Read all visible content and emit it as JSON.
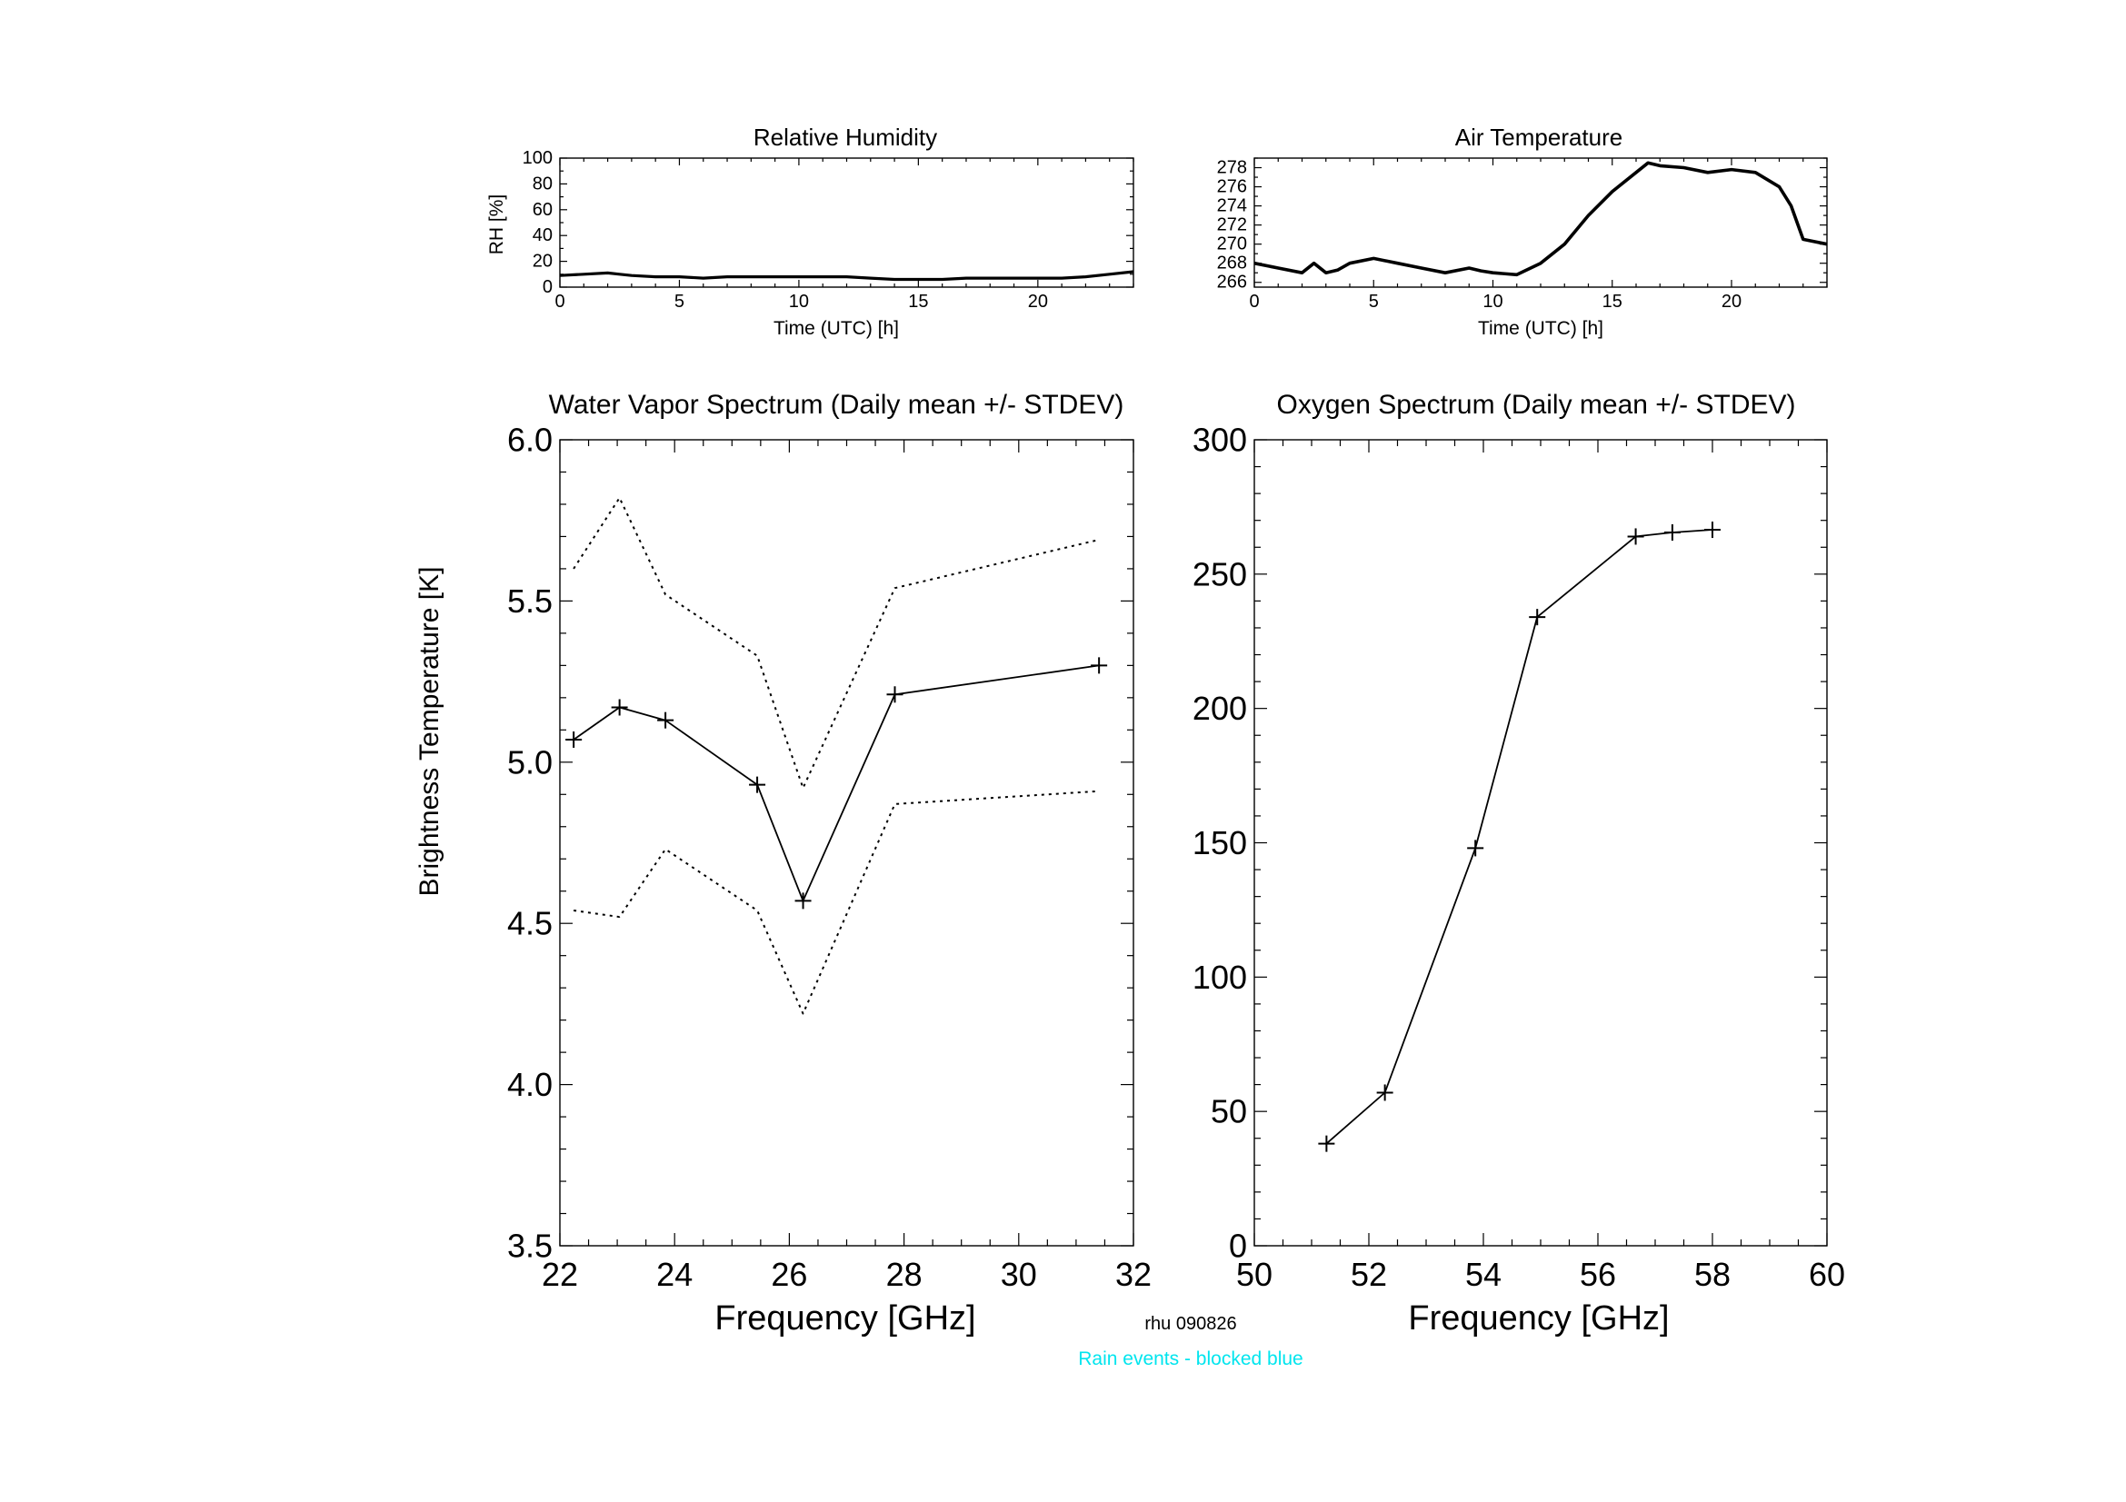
{
  "footer": {
    "station_label": "rhu 090826",
    "rain_note": "Rain events - blocked blue",
    "rain_color": "#00e5ee"
  },
  "chart_data": [
    {
      "id": "rh",
      "type": "line",
      "title": "Relative Humidity",
      "xlabel": "Time (UTC) [h]",
      "ylabel": "RH [%]",
      "xlim": [
        0,
        24
      ],
      "ylim": [
        0,
        100
      ],
      "xticks": [
        0,
        5,
        10,
        15,
        20
      ],
      "xtick_labels": [
        "0",
        "5",
        "10",
        "15",
        "20"
      ],
      "yticks": [
        0,
        20,
        40,
        60,
        80,
        100
      ],
      "ytick_labels": [
        "0",
        "20",
        "40",
        "60",
        "80",
        "100"
      ],
      "series": [
        {
          "style": "solid",
          "x": [
            0,
            1,
            2,
            2.5,
            3,
            4,
            5,
            6,
            7,
            8,
            9,
            10,
            11,
            12,
            13,
            14,
            15,
            16,
            17,
            18,
            19,
            20,
            21,
            22,
            23,
            24
          ],
          "y": [
            9,
            10,
            11,
            10,
            9,
            8,
            8,
            7,
            8,
            8,
            8,
            8,
            8,
            8,
            7,
            6,
            6,
            6,
            7,
            7,
            7,
            7,
            7,
            8,
            10,
            12
          ]
        }
      ]
    },
    {
      "id": "temp",
      "type": "line",
      "title": "Air Temperature",
      "xlabel": "Time (UTC) [h]",
      "ylabel": "",
      "xlim": [
        0,
        24
      ],
      "ylim": [
        265.5,
        279
      ],
      "xticks": [
        0,
        5,
        10,
        15,
        20
      ],
      "xtick_labels": [
        "0",
        "5",
        "10",
        "15",
        "20"
      ],
      "yticks": [
        266,
        268,
        270,
        272,
        274,
        276,
        278
      ],
      "ytick_labels": [
        "266",
        "268",
        "270",
        "272",
        "274",
        "276",
        "278"
      ],
      "series": [
        {
          "style": "solid",
          "x": [
            0,
            1,
            2,
            2.5,
            3,
            3.5,
            4,
            5,
            6,
            7,
            8,
            9,
            9.5,
            10,
            11,
            12,
            13,
            14,
            15,
            16,
            16.5,
            17,
            18,
            19,
            20,
            21,
            22,
            22.5,
            23,
            24
          ],
          "y": [
            268,
            267.5,
            267,
            268,
            267,
            267.3,
            268,
            268.5,
            268,
            267.5,
            267,
            267.5,
            267.2,
            267,
            266.8,
            268,
            270,
            273,
            275.5,
            277.5,
            278.5,
            278.2,
            278,
            277.5,
            277.8,
            277.5,
            276,
            274,
            270.5,
            270
          ]
        }
      ]
    },
    {
      "id": "wv",
      "type": "line",
      "title": "Water Vapor Spectrum (Daily mean +/- STDEV)",
      "xlabel": "Frequency [GHz]",
      "ylabel": "Brightness Temperature [K]",
      "xlim": [
        22,
        32
      ],
      "ylim": [
        3.5,
        6.0
      ],
      "xticks": [
        22,
        24,
        26,
        28,
        30,
        32
      ],
      "xtick_labels": [
        "22",
        "24",
        "26",
        "28",
        "30",
        "32"
      ],
      "yticks": [
        3.5,
        4.0,
        4.5,
        5.0,
        5.5,
        6.0
      ],
      "ytick_labels": [
        "3.5",
        "4.0",
        "4.5",
        "5.0",
        "5.5",
        "6.0"
      ],
      "series": [
        {
          "style": "solid",
          "markers": true,
          "x": [
            22.24,
            23.04,
            23.84,
            25.44,
            26.24,
            27.84,
            31.4
          ],
          "y": [
            5.07,
            5.17,
            5.13,
            4.93,
            4.57,
            5.21,
            5.3
          ]
        },
        {
          "style": "dotted",
          "markers": false,
          "x": [
            22.24,
            23.04,
            23.84,
            25.44,
            26.24,
            27.84,
            31.4
          ],
          "y": [
            5.6,
            5.82,
            5.52,
            5.33,
            4.92,
            5.54,
            5.69
          ]
        },
        {
          "style": "dotted",
          "markers": false,
          "x": [
            22.24,
            23.04,
            23.84,
            25.44,
            26.24,
            27.84,
            31.4
          ],
          "y": [
            4.54,
            4.52,
            4.73,
            4.54,
            4.22,
            4.87,
            4.91
          ]
        }
      ]
    },
    {
      "id": "ox",
      "type": "line",
      "title": "Oxygen Spectrum (Daily mean +/- STDEV)",
      "xlabel": "Frequency [GHz]",
      "ylabel": "",
      "xlim": [
        50,
        60
      ],
      "ylim": [
        0,
        300
      ],
      "xticks": [
        50,
        52,
        54,
        56,
        58,
        60
      ],
      "xtick_labels": [
        "50",
        "52",
        "54",
        "56",
        "58",
        "60"
      ],
      "yticks": [
        0,
        50,
        100,
        150,
        200,
        250,
        300
      ],
      "ytick_labels": [
        "0",
        "50",
        "100",
        "150",
        "200",
        "250",
        "300"
      ],
      "series": [
        {
          "style": "solid",
          "markers": true,
          "x": [
            51.26,
            52.28,
            53.86,
            54.94,
            56.66,
            57.3,
            58.0
          ],
          "y": [
            38,
            57,
            148,
            234,
            264,
            265.5,
            266.5
          ]
        }
      ]
    }
  ]
}
